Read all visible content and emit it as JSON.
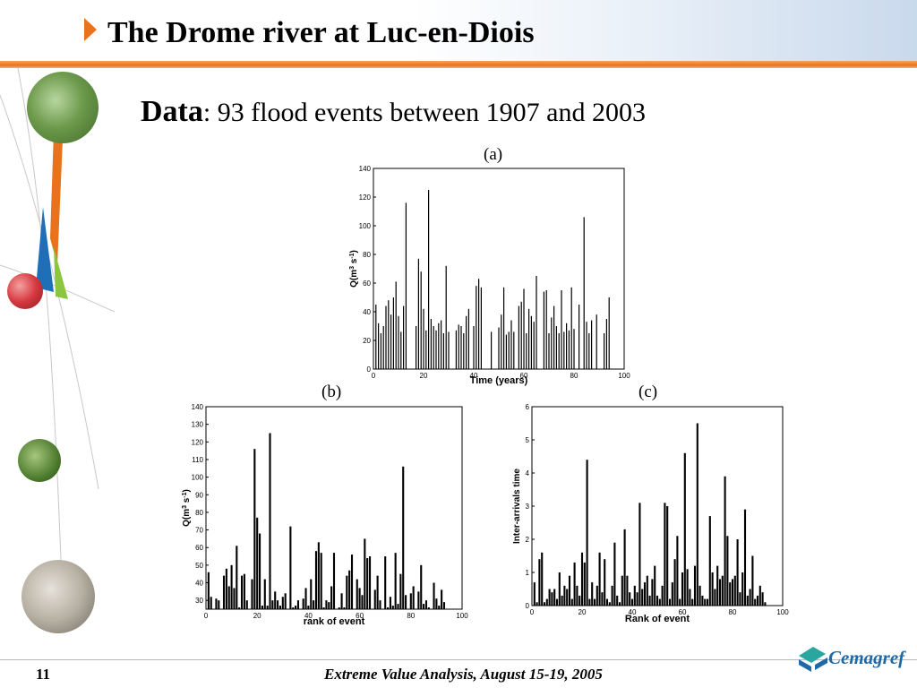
{
  "slide": {
    "title": "The Drome river at Luc-en-Diois",
    "subtitle_bold": "Data",
    "subtitle_rest": ": 93 flood events between 1907 and 2003",
    "page_number": "11",
    "footer": "Extreme Value Analysis, August 15-19, 2005",
    "logo_text": "Cemagref",
    "colors": {
      "accent": "#e8731c",
      "logo_blue": "#1e6aa8",
      "logo_teal": "#2aa6a0"
    }
  },
  "chart_data": [
    {
      "type": "bar",
      "panel_label": "(a)",
      "xlabel": "Time (years)",
      "ylabel_base": "Q(m",
      "ylabel_sup1": "3",
      "ylabel_mid": " s",
      "ylabel_sup2": "-1",
      "ylabel_end": ")",
      "xlim": [
        0,
        100
      ],
      "ylim": [
        0,
        140
      ],
      "xticks": [
        0,
        20,
        40,
        60,
        80,
        100
      ],
      "yticks": [
        0,
        20,
        40,
        60,
        80,
        100,
        120,
        140
      ],
      "x": [
        1,
        2,
        3,
        4,
        5,
        6,
        7,
        8,
        9,
        10,
        11,
        12,
        13,
        17,
        18,
        19,
        20,
        21,
        22,
        23,
        24,
        25,
        26,
        27,
        28,
        29,
        30,
        33,
        34,
        35,
        36,
        37,
        38,
        40,
        41,
        42,
        43,
        47,
        50,
        51,
        52,
        53,
        54,
        55,
        56,
        58,
        59,
        60,
        61,
        62,
        63,
        64,
        65,
        68,
        69,
        70,
        71,
        72,
        73,
        74,
        75,
        76,
        77,
        78,
        79,
        80,
        82,
        84,
        85,
        86,
        87,
        89,
        92,
        93,
        94
      ],
      "values": [
        45,
        32,
        25,
        30,
        44,
        48,
        38,
        50,
        61,
        37,
        26,
        44,
        116,
        30,
        77,
        68,
        42,
        27,
        125,
        35,
        30,
        27,
        32,
        34,
        25,
        72,
        26,
        27,
        31,
        30,
        25,
        37,
        42,
        30,
        58,
        63,
        57,
        26,
        29,
        38,
        57,
        24,
        26,
        34,
        26,
        44,
        47,
        56,
        25,
        42,
        37,
        33,
        65,
        54,
        55,
        25,
        36,
        44,
        30,
        25,
        55,
        26,
        32,
        27,
        57,
        28,
        45,
        106,
        33,
        25,
        34,
        38,
        25,
        35,
        50
      ]
    },
    {
      "type": "bar",
      "panel_label": "(b)",
      "xlabel": "rank of event",
      "ylabel_base": "Q(m",
      "ylabel_sup1": "3",
      "ylabel_mid": " s",
      "ylabel_sup2": "-1",
      "ylabel_end": ")",
      "xlim": [
        0,
        100
      ],
      "ylim": [
        25,
        140
      ],
      "xticks": [
        0,
        20,
        40,
        60,
        80,
        100
      ],
      "yticks": [
        30,
        40,
        50,
        60,
        70,
        80,
        90,
        100,
        110,
        120,
        130,
        140
      ],
      "values": [
        46,
        32,
        25,
        31,
        30,
        25,
        44,
        48,
        38,
        50,
        37,
        61,
        26,
        44,
        45,
        30,
        25,
        42,
        116,
        77,
        68,
        27,
        42,
        27,
        125,
        30,
        35,
        30,
        27,
        32,
        34,
        25,
        72,
        26,
        27,
        30,
        25,
        31,
        37,
        27,
        42,
        30,
        58,
        63,
        57,
        26,
        30,
        29,
        38,
        57,
        24,
        26,
        34,
        26,
        44,
        47,
        56,
        25,
        42,
        37,
        33,
        65,
        54,
        55,
        25,
        36,
        44,
        30,
        25,
        55,
        26,
        32,
        27,
        57,
        28,
        45,
        106,
        33,
        25,
        34,
        38,
        25,
        35,
        50,
        28,
        30,
        26,
        25,
        40,
        31,
        27,
        36,
        29
      ]
    },
    {
      "type": "bar",
      "panel_label": "(c)",
      "xlabel": "Rank of event",
      "ylabel": "Inter-arrivals time",
      "xlim": [
        0,
        100
      ],
      "ylim": [
        0,
        6
      ],
      "xticks": [
        0,
        20,
        40,
        60,
        80,
        100
      ],
      "yticks": [
        0,
        1,
        2,
        3,
        4,
        5,
        6
      ],
      "values": [
        0.7,
        0.1,
        1.4,
        1.6,
        0.1,
        0.2,
        0.5,
        0.4,
        0.5,
        0.2,
        1.0,
        0.3,
        0.6,
        0.5,
        0.9,
        0.2,
        1.3,
        0.6,
        0.3,
        1.6,
        1.3,
        4.4,
        0.2,
        0.7,
        0.2,
        0.6,
        1.6,
        0.4,
        1.4,
        0.2,
        0.1,
        0.6,
        1.9,
        0.3,
        0.1,
        0.9,
        2.3,
        0.9,
        0.4,
        0.2,
        0.6,
        0.4,
        3.1,
        0.5,
        0.7,
        0.9,
        0.3,
        0.8,
        1.2,
        0.3,
        0.2,
        0.6,
        3.1,
        3.0,
        0.2,
        0.7,
        1.4,
        2.1,
        0.2,
        1.0,
        4.6,
        1.1,
        0.5,
        0.2,
        1.2,
        5.5,
        0.6,
        0.3,
        0.2,
        0.2,
        2.7,
        1.0,
        0.5,
        1.2,
        0.8,
        0.9,
        3.9,
        2.1,
        0.7,
        0.8,
        0.9,
        2.0,
        0.4,
        1.0,
        2.9,
        0.3,
        0.5,
        1.5,
        0.2,
        0.3,
        0.6,
        0.4,
        0.1
      ]
    }
  ]
}
